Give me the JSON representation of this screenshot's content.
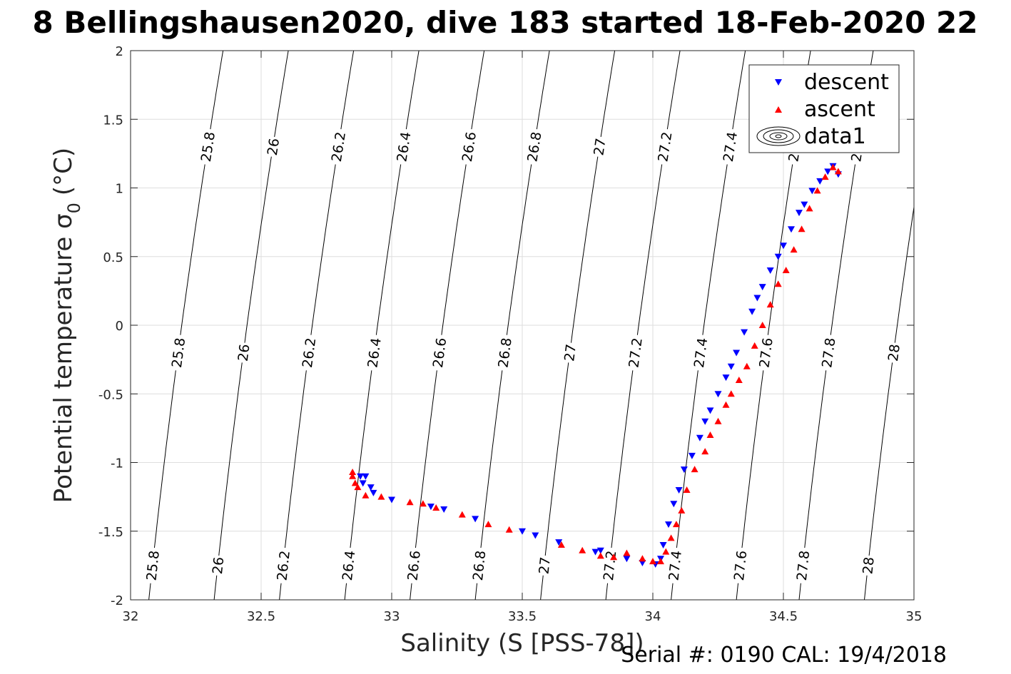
{
  "chart_data": {
    "type": "scatter",
    "title": "8 Bellingshausen2020, dive 183 started 18-Feb-2020 22",
    "xlabel": "Salinity (S [PSS-78])",
    "ylabel_main": "Potential temperature σ",
    "ylabel_sub": "0",
    "ylabel_unit": "(°C)",
    "xlim": [
      32,
      35
    ],
    "ylim": [
      -2,
      2
    ],
    "xticks": [
      32,
      32.5,
      33,
      33.5,
      34,
      34.5,
      35
    ],
    "xtick_labels": [
      "32",
      "32.5",
      "33",
      "33.5",
      "34",
      "34.5",
      "35"
    ],
    "yticks": [
      -2,
      -1.5,
      -1,
      -0.5,
      0,
      0.5,
      1,
      1.5,
      2
    ],
    "ytick_labels": [
      "-2",
      "-1.5",
      "-1",
      "-0.5",
      "0",
      "0.5",
      "1",
      "1.5",
      "2"
    ],
    "grid": true,
    "legend_position": "top-right",
    "footer": "Serial #: 0190  CAL: 19/4/2018",
    "contours": {
      "levels": [
        25.8,
        26,
        26.2,
        26.4,
        26.6,
        26.8,
        27,
        27.2,
        27.4,
        27.6,
        27.8,
        28
      ],
      "labels": [
        "25.8",
        "26",
        "26.2",
        "26.4",
        "26.6",
        "26.8",
        "27",
        "27.2",
        "27.4",
        "27.6",
        "27.8",
        "28"
      ],
      "s_at_theta_minus2": [
        32.07,
        32.32,
        32.57,
        32.82,
        33.07,
        33.32,
        33.57,
        33.82,
        34.07,
        34.32,
        34.56,
        34.81
      ],
      "slope_per_degC": 0.055,
      "line_color": "#000000"
    },
    "series": [
      {
        "name": "descent",
        "color": "#0000ff",
        "marker": "triangle-down",
        "points": [
          [
            32.88,
            -1.1
          ],
          [
            32.9,
            -1.1
          ],
          [
            32.89,
            -1.15
          ],
          [
            32.92,
            -1.18
          ],
          [
            32.93,
            -1.22
          ],
          [
            33.0,
            -1.27
          ],
          [
            33.15,
            -1.32
          ],
          [
            33.2,
            -1.34
          ],
          [
            33.32,
            -1.41
          ],
          [
            33.5,
            -1.5
          ],
          [
            33.55,
            -1.53
          ],
          [
            33.64,
            -1.58
          ],
          [
            33.78,
            -1.65
          ],
          [
            33.8,
            -1.64
          ],
          [
            33.9,
            -1.7
          ],
          [
            33.96,
            -1.73
          ],
          [
            34.01,
            -1.74
          ],
          [
            34.03,
            -1.7
          ],
          [
            34.04,
            -1.6
          ],
          [
            34.06,
            -1.45
          ],
          [
            34.08,
            -1.3
          ],
          [
            34.1,
            -1.2
          ],
          [
            34.12,
            -1.05
          ],
          [
            34.15,
            -0.95
          ],
          [
            34.18,
            -0.82
          ],
          [
            34.2,
            -0.7
          ],
          [
            34.22,
            -0.62
          ],
          [
            34.25,
            -0.5
          ],
          [
            34.28,
            -0.38
          ],
          [
            34.3,
            -0.3
          ],
          [
            34.32,
            -0.2
          ],
          [
            34.35,
            -0.05
          ],
          [
            34.38,
            0.1
          ],
          [
            34.4,
            0.2
          ],
          [
            34.42,
            0.28
          ],
          [
            34.45,
            0.4
          ],
          [
            34.48,
            0.5
          ],
          [
            34.5,
            0.58
          ],
          [
            34.53,
            0.7
          ],
          [
            34.56,
            0.82
          ],
          [
            34.58,
            0.88
          ],
          [
            34.61,
            0.98
          ],
          [
            34.64,
            1.05
          ],
          [
            34.67,
            1.12
          ],
          [
            34.69,
            1.16
          ],
          [
            34.71,
            1.1
          ]
        ]
      },
      {
        "name": "ascent",
        "color": "#ff0000",
        "marker": "triangle-up",
        "points": [
          [
            32.85,
            -1.07
          ],
          [
            32.85,
            -1.1
          ],
          [
            32.86,
            -1.15
          ],
          [
            32.87,
            -1.18
          ],
          [
            32.9,
            -1.24
          ],
          [
            32.96,
            -1.25
          ],
          [
            33.07,
            -1.29
          ],
          [
            33.12,
            -1.3
          ],
          [
            33.17,
            -1.33
          ],
          [
            33.27,
            -1.38
          ],
          [
            33.37,
            -1.45
          ],
          [
            33.45,
            -1.49
          ],
          [
            33.65,
            -1.6
          ],
          [
            33.73,
            -1.64
          ],
          [
            33.8,
            -1.68
          ],
          [
            33.85,
            -1.69
          ],
          [
            33.9,
            -1.66
          ],
          [
            33.96,
            -1.7
          ],
          [
            34.0,
            -1.72
          ],
          [
            34.03,
            -1.72
          ],
          [
            34.05,
            -1.65
          ],
          [
            34.07,
            -1.55
          ],
          [
            34.09,
            -1.45
          ],
          [
            34.11,
            -1.35
          ],
          [
            34.13,
            -1.2
          ],
          [
            34.16,
            -1.05
          ],
          [
            34.2,
            -0.92
          ],
          [
            34.22,
            -0.8
          ],
          [
            34.25,
            -0.7
          ],
          [
            34.28,
            -0.58
          ],
          [
            34.3,
            -0.5
          ],
          [
            34.33,
            -0.4
          ],
          [
            34.36,
            -0.3
          ],
          [
            34.39,
            -0.15
          ],
          [
            34.42,
            0.0
          ],
          [
            34.45,
            0.15
          ],
          [
            34.48,
            0.3
          ],
          [
            34.51,
            0.4
          ],
          [
            34.54,
            0.55
          ],
          [
            34.57,
            0.7
          ],
          [
            34.6,
            0.85
          ],
          [
            34.63,
            0.98
          ],
          [
            34.66,
            1.08
          ],
          [
            34.69,
            1.15
          ],
          [
            34.71,
            1.12
          ]
        ]
      }
    ],
    "legend": {
      "entries": [
        {
          "label": "descent",
          "icon": "blue-triangle-down-icon"
        },
        {
          "label": "ascent",
          "icon": "red-triangle-up-icon"
        },
        {
          "label": "data1",
          "icon": "contour-ellipses-icon"
        }
      ]
    }
  }
}
